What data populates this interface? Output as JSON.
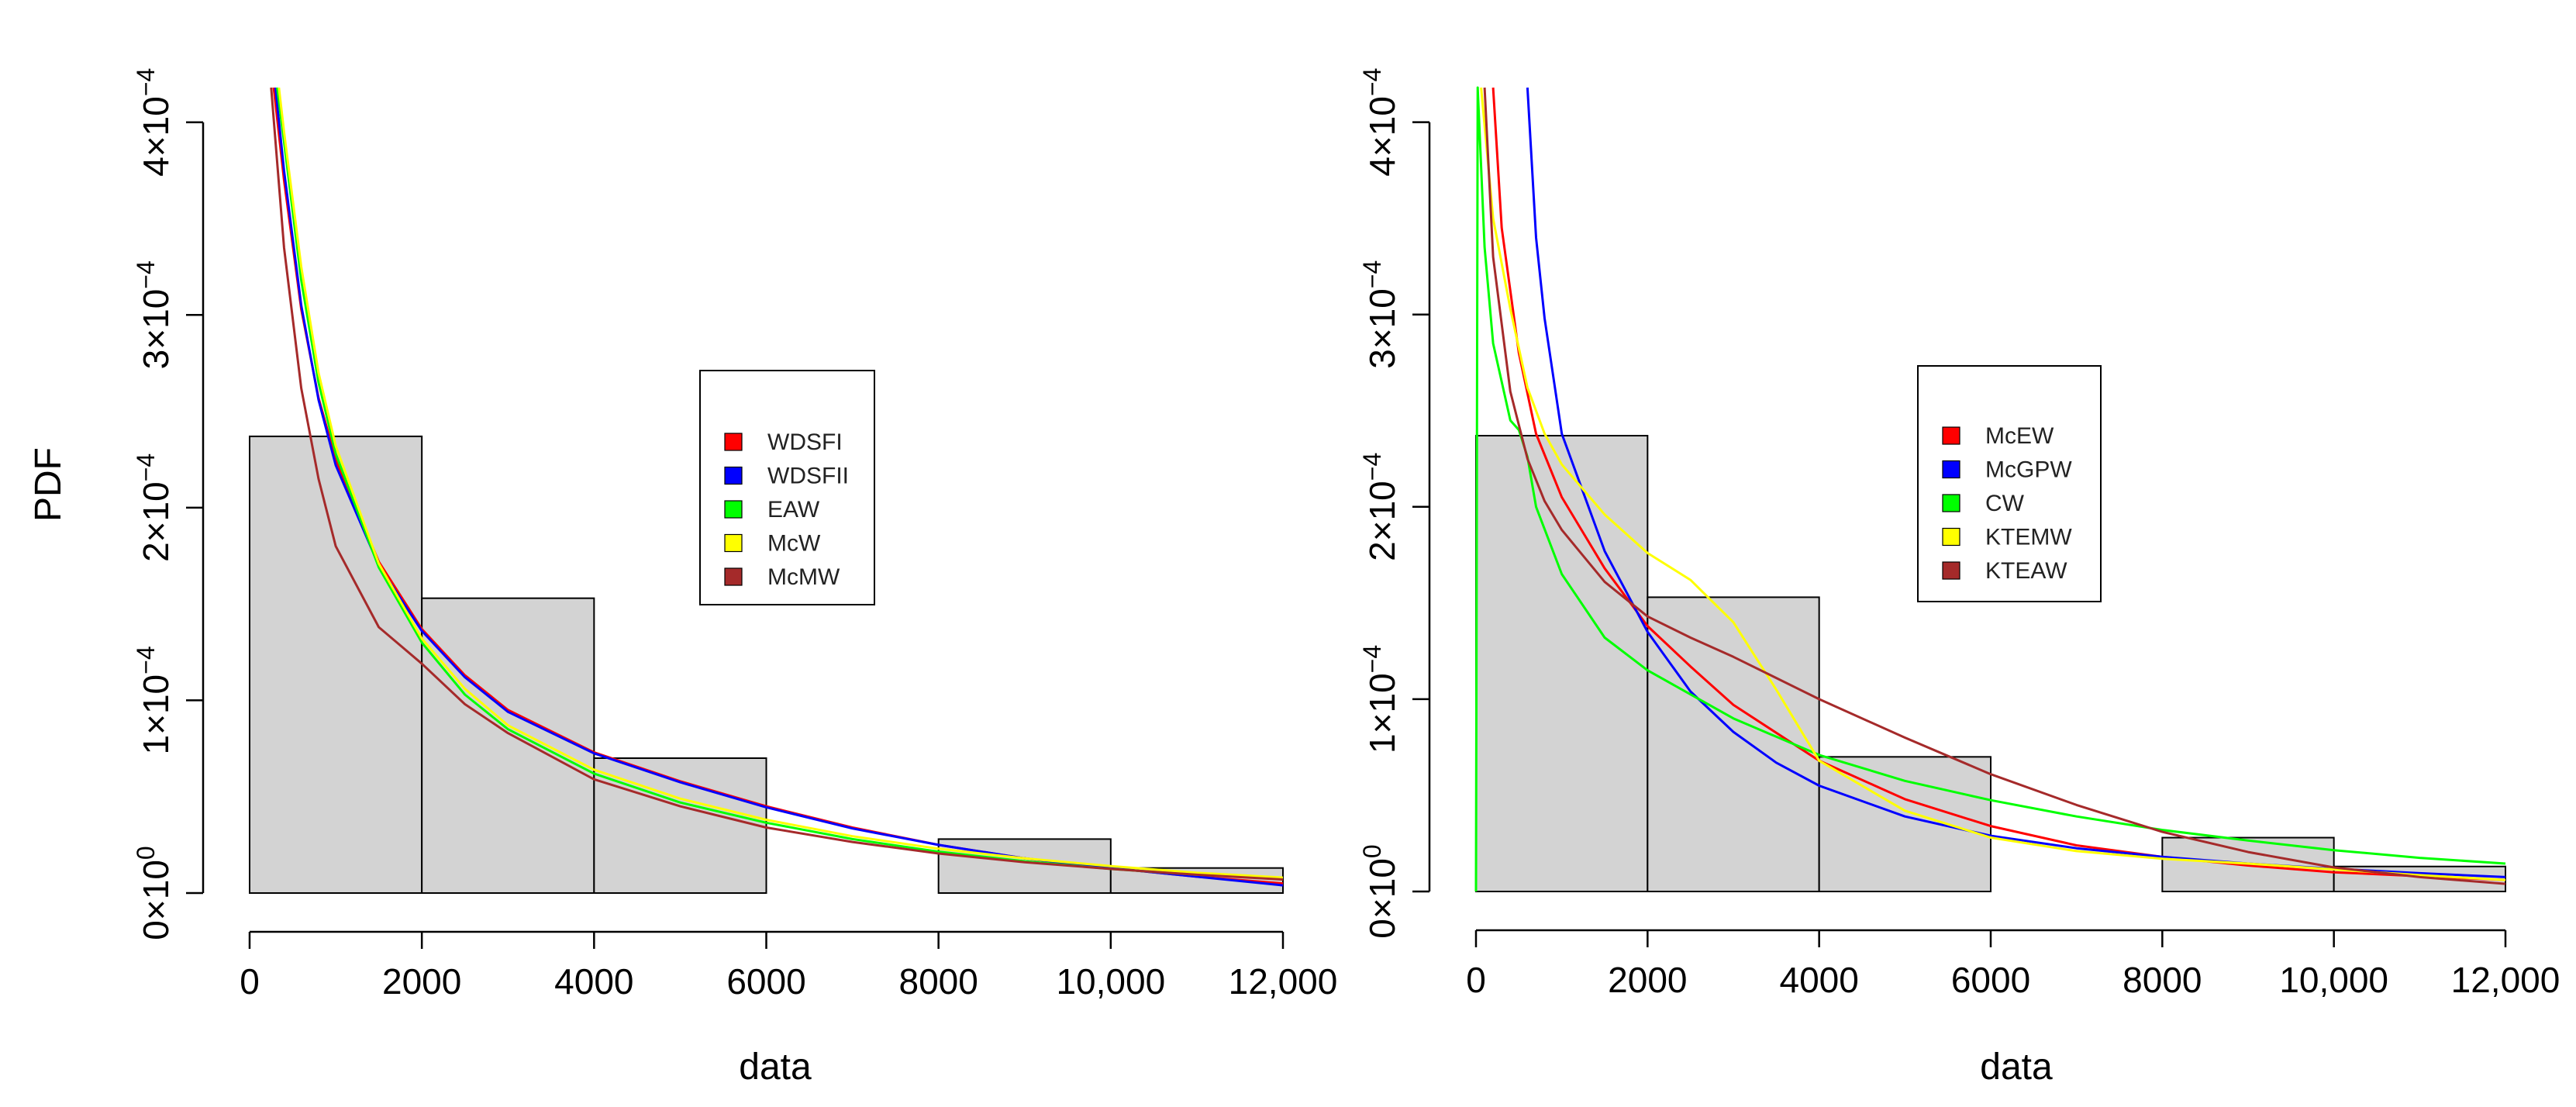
{
  "figure": {
    "colors": {
      "bars_fill": "#d3d3d3",
      "bars_stroke": "#000000",
      "legend_border": "#000000"
    },
    "panels": [
      {
        "id": "left",
        "ylabel": "PDF",
        "xlabel": "data"
      },
      {
        "id": "right",
        "ylabel": "",
        "xlabel": "data"
      }
    ]
  },
  "chart_data": [
    {
      "type": "histogram",
      "title": "",
      "xlabel": "data",
      "ylabel": "PDF",
      "xlim": [
        0,
        12000
      ],
      "ylim": [
        0,
        0.00042
      ],
      "x_ticks": [
        {
          "value": 0,
          "label": "0"
        },
        {
          "value": 2000,
          "label": "2000"
        },
        {
          "value": 4000,
          "label": "4000"
        },
        {
          "value": 6000,
          "label": "6000"
        },
        {
          "value": 8000,
          "label": "8000"
        },
        {
          "value": 10000,
          "label": "10,000"
        },
        {
          "value": 12000,
          "label": "12,000"
        }
      ],
      "y_ticks": [
        {
          "value": 0,
          "base": "0×10",
          "exp": "0"
        },
        {
          "value": 0.0001,
          "base": "1×10",
          "exp": "−4"
        },
        {
          "value": 0.0002,
          "base": "2×10",
          "exp": "−4"
        },
        {
          "value": 0.0003,
          "base": "3×10",
          "exp": "−4"
        },
        {
          "value": 0.0004,
          "base": "4×10",
          "exp": "−4"
        }
      ],
      "bins": [
        {
          "x0": 0,
          "x1": 2000,
          "density": 0.000237
        },
        {
          "x0": 2000,
          "x1": 4000,
          "density": 0.000153
        },
        {
          "x0": 4000,
          "x1": 6000,
          "density": 7e-05
        },
        {
          "x0": 6000,
          "x1": 8000,
          "density": 0
        },
        {
          "x0": 8000,
          "x1": 10000,
          "density": 2.8e-05
        },
        {
          "x0": 10000,
          "x1": 12000,
          "density": 1.3e-05
        }
      ],
      "legend": {
        "placement": "center-right"
      },
      "series": [
        {
          "name": "WDSFI",
          "color": "#ff0000",
          "x": [
            280,
            400,
            600,
            800,
            1000,
            1500,
            2000,
            2500,
            3000,
            4000,
            5000,
            6000,
            7000,
            8000,
            9000,
            10000,
            11000,
            12000
          ],
          "y": [
            0.000418,
            0.00037,
            0.000303,
            0.000257,
            0.000225,
            0.000172,
            0.000137,
            0.000113,
            9.5e-05,
            7.3e-05,
            5.8e-05,
            4.5e-05,
            3.4e-05,
            2.5e-05,
            1.8e-05,
            1.3e-05,
            8.5e-06,
            5e-06
          ]
        },
        {
          "name": "WDSFII",
          "color": "#0000ff",
          "x": [
            300,
            400,
            600,
            800,
            1000,
            1500,
            2000,
            2500,
            3000,
            4000,
            5000,
            6000,
            7000,
            8000,
            9000,
            10000,
            11000,
            12000
          ],
          "y": [
            0.000418,
            0.000375,
            0.000305,
            0.000256,
            0.000222,
            0.00017,
            0.000136,
            0.000112,
            9.4e-05,
            7.25e-05,
            5.75e-05,
            4.45e-05,
            3.35e-05,
            2.5e-05,
            1.8e-05,
            1.3e-05,
            8.5e-06,
            4e-06
          ]
        },
        {
          "name": "EAW",
          "color": "#00ff00",
          "x": [
            320,
            400,
            600,
            800,
            1000,
            1500,
            2000,
            2500,
            3000,
            4000,
            5000,
            6000,
            7000,
            8000,
            9000,
            10000,
            11000,
            12000
          ],
          "y": [
            0.000418,
            0.00039,
            0.000318,
            0.000265,
            0.000228,
            0.000169,
            0.00013,
            0.000103,
            8.5e-05,
            6.2e-05,
            4.7e-05,
            3.65e-05,
            2.8e-05,
            2.15e-05,
            1.65e-05,
            1.25e-05,
            9.5e-06,
            7.5e-06
          ]
        },
        {
          "name": "McW",
          "color": "#ffff00",
          "x": [
            340,
            400,
            600,
            800,
            1000,
            1500,
            2000,
            2500,
            3000,
            4000,
            5000,
            6000,
            7000,
            8000,
            9000,
            10000,
            11000,
            12000
          ],
          "y": [
            0.000418,
            0.000395,
            0.000325,
            0.00027,
            0.000232,
            0.000171,
            0.000132,
            0.000106,
            8.7e-05,
            6.4e-05,
            4.9e-05,
            3.8e-05,
            2.95e-05,
            2.3e-05,
            1.8e-05,
            1.4e-05,
            1.05e-05,
            8e-06
          ]
        },
        {
          "name": "McMW",
          "color": "#a52a2a",
          "x": [
            250,
            400,
            600,
            800,
            1000,
            1500,
            2000,
            2500,
            3000,
            4000,
            5000,
            6000,
            7000,
            8000,
            9000,
            10000,
            11000,
            12000
          ],
          "y": [
            0.000418,
            0.000335,
            0.000262,
            0.000215,
            0.00018,
            0.000138,
            0.000119,
            9.8e-05,
            8.3e-05,
            5.9e-05,
            4.5e-05,
            3.4e-05,
            2.65e-05,
            2.05e-05,
            1.6e-05,
            1.25e-05,
            9.5e-06,
            7e-06
          ]
        }
      ]
    },
    {
      "type": "histogram",
      "title": "",
      "xlabel": "data",
      "ylabel": "",
      "xlim": [
        0,
        12000
      ],
      "ylim": [
        0,
        0.00042
      ],
      "x_ticks": [
        {
          "value": 0,
          "label": "0"
        },
        {
          "value": 2000,
          "label": "2000"
        },
        {
          "value": 4000,
          "label": "4000"
        },
        {
          "value": 6000,
          "label": "6000"
        },
        {
          "value": 8000,
          "label": "8000"
        },
        {
          "value": 10000,
          "label": "10,000"
        },
        {
          "value": 12000,
          "label": "12,000"
        }
      ],
      "y_ticks": [
        {
          "value": 0,
          "base": "0×10",
          "exp": "0"
        },
        {
          "value": 0.0001,
          "base": "1×10",
          "exp": "−4"
        },
        {
          "value": 0.0002,
          "base": "2×10",
          "exp": "−4"
        },
        {
          "value": 0.0003,
          "base": "3×10",
          "exp": "−4"
        },
        {
          "value": 0.0004,
          "base": "4×10",
          "exp": "−4"
        }
      ],
      "bins": [
        {
          "x0": 0,
          "x1": 2000,
          "density": 0.000237
        },
        {
          "x0": 2000,
          "x1": 4000,
          "density": 0.000153
        },
        {
          "x0": 4000,
          "x1": 6000,
          "density": 7e-05
        },
        {
          "x0": 6000,
          "x1": 8000,
          "density": 0
        },
        {
          "x0": 8000,
          "x1": 10000,
          "density": 2.8e-05
        },
        {
          "x0": 10000,
          "x1": 12000,
          "density": 1.3e-05
        }
      ],
      "legend": {
        "placement": "center-right"
      },
      "series": [
        {
          "name": "McEW",
          "color": "#ff0000",
          "x": [
            200,
            300,
            500,
            700,
            1000,
            1500,
            2000,
            2500,
            3000,
            4000,
            5000,
            6000,
            7000,
            8000,
            9000,
            10000,
            11000,
            12000
          ],
          "y": [
            0.000418,
            0.000345,
            0.00028,
            0.000238,
            0.000205,
            0.000168,
            0.000138,
            0.000117,
            9.7e-05,
            6.8e-05,
            4.8e-05,
            3.4e-05,
            2.4e-05,
            1.8e-05,
            1.35e-05,
            1e-05,
            8e-06,
            6e-06
          ]
        },
        {
          "name": "McGPW",
          "color": "#0000ff",
          "x": [
            600,
            700,
            800,
            1000,
            1500,
            2000,
            2500,
            3000,
            3500,
            4000,
            5000,
            6000,
            7000,
            8000,
            9000,
            10000,
            11000,
            12000
          ],
          "y": [
            0.000418,
            0.00034,
            0.000298,
            0.000238,
            0.000177,
            0.000135,
            0.000104,
            8.3e-05,
            6.7e-05,
            5.5e-05,
            3.9e-05,
            2.9e-05,
            2.25e-05,
            1.8e-05,
            1.45e-05,
            1.18e-05,
            9.5e-06,
            7.5e-06
          ]
        },
        {
          "name": "CW",
          "color": "#00ff00",
          "x": [
            0,
            20,
            100,
            200,
            400,
            500,
            600,
            700,
            1000,
            1500,
            2000,
            3000,
            4000,
            5000,
            6000,
            7000,
            8000,
            9000,
            10000,
            11000,
            12000
          ],
          "y": [
            0,
            0.000418,
            0.000335,
            0.000285,
            0.000245,
            0.00024,
            0.000226,
            0.0002,
            0.000165,
            0.000132,
            0.000115,
            9e-05,
            7.1e-05,
            5.75e-05,
            4.75e-05,
            3.9e-05,
            3.2e-05,
            2.65e-05,
            2.15e-05,
            1.75e-05,
            1.45e-05
          ]
        },
        {
          "name": "KTEMW",
          "color": "#ffff00",
          "x": [
            60,
            200,
            400,
            600,
            800,
            1000,
            1500,
            2000,
            2500,
            3000,
            3500,
            4000,
            5000,
            6000,
            7000,
            8000,
            9000,
            10000,
            11000,
            12000
          ],
          "y": [
            0.000418,
            0.00035,
            0.000303,
            0.000262,
            0.000238,
            0.000222,
            0.000196,
            0.000176,
            0.000162,
            0.00014,
            0.000105,
            6.8e-05,
            4.2e-05,
            2.8e-05,
            2.1e-05,
            1.7e-05,
            1.45e-05,
            1.15e-05,
            8.5e-06,
            6e-06
          ]
        },
        {
          "name": "KTEAW",
          "color": "#a52a2a",
          "x": [
            100,
            200,
            400,
            600,
            800,
            1000,
            1500,
            2000,
            2500,
            3000,
            4000,
            5000,
            6000,
            7000,
            8000,
            9000,
            10000,
            11000,
            12000
          ],
          "y": [
            0.000418,
            0.00033,
            0.00026,
            0.000225,
            0.000203,
            0.000188,
            0.000161,
            0.000143,
            0.000132,
            0.000122,
            0.0001,
            8e-05,
            6.1e-05,
            4.5e-05,
            3.1e-05,
            2.05e-05,
            1.25e-05,
            7.5e-06,
            4e-06
          ]
        }
      ]
    }
  ]
}
